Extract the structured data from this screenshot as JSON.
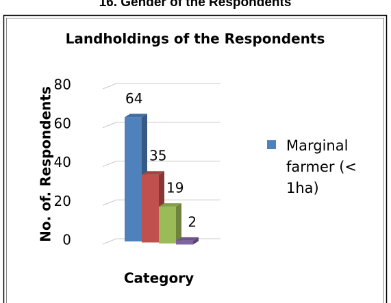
{
  "page_heading": "16. Gender of the Respondents",
  "chart_data": {
    "type": "bar3d",
    "title": "Landholdings of the Respondents",
    "x_label": "Category",
    "y_label": "No. of. Respondents",
    "ylim": [
      0,
      80
    ],
    "yticks": [
      0,
      20,
      40,
      60,
      80
    ],
    "grid": true,
    "series": [
      {
        "name": "Marginal farmer (< 1ha)",
        "color": "#4f81bd",
        "values": [
          64
        ]
      },
      {
        "color": "#c0504d",
        "values": [
          35
        ]
      },
      {
        "color": "#9bbb59",
        "values": [
          19
        ]
      },
      {
        "color": "#8064a2",
        "values": [
          2
        ]
      }
    ]
  }
}
